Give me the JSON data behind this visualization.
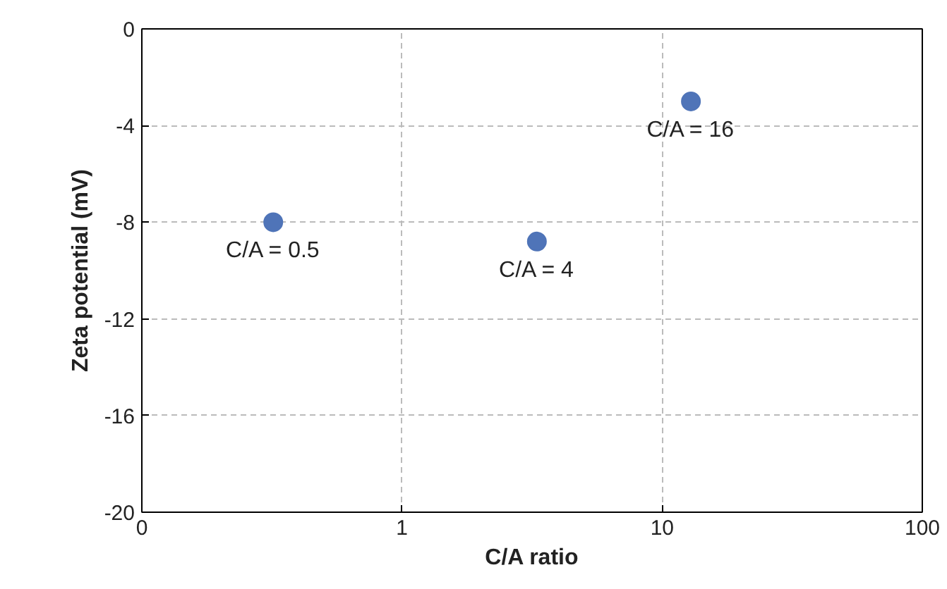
{
  "chart_data": {
    "type": "scatter",
    "xlabel": "C/A ratio",
    "ylabel": "Zeta potential (mV)",
    "log": "x",
    "x": [
      0.32,
      3.3,
      12.9
    ],
    "values": [
      -8,
      -8.8,
      -3
    ],
    "color": "#4f74b8",
    "marker": "circle",
    "grid": true,
    "xlim": [
      0.1,
      100
    ],
    "xticks": [
      {
        "value": 0.1,
        "label": "0"
      },
      1,
      10,
      100
    ],
    "ylim": [
      -20,
      0
    ],
    "yticks": [
      -20,
      -16,
      -12,
      -8,
      -4,
      0
    ],
    "annotations": [
      {
        "text": "C/A = 0.5",
        "x": 0.32,
        "y": -8
      },
      {
        "text": "C/A = 4",
        "x": 3.3,
        "y": -8.8
      },
      {
        "text": "C/A = 16",
        "x": 12.9,
        "y": -3
      }
    ]
  }
}
